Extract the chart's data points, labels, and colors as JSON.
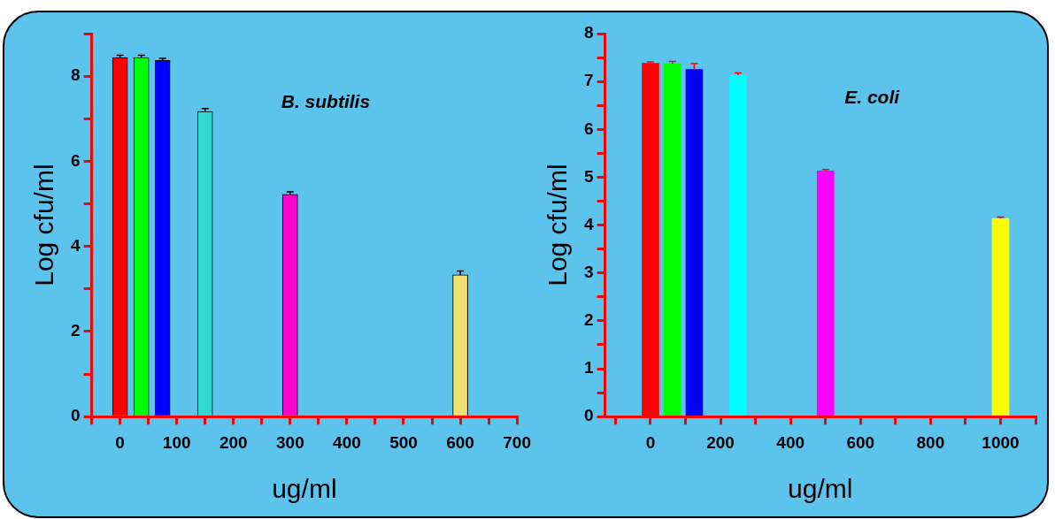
{
  "chart_data": [
    {
      "type": "bar",
      "title": "B. subtilis",
      "xlabel": "ug/ml",
      "ylabel": "Log cfu/ml",
      "x": [
        0,
        37.5,
        75,
        150,
        300,
        600
      ],
      "values": [
        8.44,
        8.44,
        8.37,
        7.17,
        5.22,
        3.33
      ],
      "errors": [
        0.05,
        0.05,
        0.05,
        0.07,
        0.06,
        0.09
      ],
      "colors": [
        "#ff0000",
        "#00ff00",
        "#0000ff",
        "#30d8d0",
        "#ff00cc",
        "#f0e070"
      ],
      "xlim": [
        -50,
        700
      ],
      "xticks": [
        {
          "value": -50,
          "label": null
        },
        0,
        {
          "value": 50,
          "label": null
        },
        100,
        {
          "value": 150,
          "label": null
        },
        200,
        {
          "value": 250,
          "label": null
        },
        300,
        {
          "value": 350,
          "label": null
        },
        400,
        {
          "value": 450,
          "label": null
        },
        500,
        {
          "value": 550,
          "label": null
        },
        600,
        {
          "value": 650,
          "label": null
        },
        700
      ],
      "ylim": [
        0,
        9
      ],
      "yticks": [
        0,
        {
          "value": 1,
          "label": null
        },
        2,
        {
          "value": 3,
          "label": null
        },
        4,
        {
          "value": 5,
          "label": null
        },
        6,
        {
          "value": 7,
          "label": null
        },
        8,
        {
          "value": 9,
          "label": null
        }
      ]
    },
    {
      "type": "bar",
      "title": "E. coli",
      "xlabel": "ug/ml",
      "ylabel": "Log cfu/ml",
      "x": [
        0,
        62.5,
        125,
        250,
        500,
        1000
      ],
      "values": [
        7.38,
        7.37,
        7.25,
        7.13,
        5.13,
        4.14
      ],
      "errors": [
        0.03,
        0.05,
        0.12,
        0.05,
        0.03,
        0.03
      ],
      "colors": [
        "#ff0000",
        "#00ff00",
        "#0000ff",
        "#00ffff",
        "#ff00ff",
        "#ffff00"
      ],
      "xlim": [
        -130,
        1100
      ],
      "xticks": [
        {
          "value": -100,
          "label": null
        },
        0,
        {
          "value": 100,
          "label": null
        },
        200,
        {
          "value": 300,
          "label": null
        },
        400,
        {
          "value": 500,
          "label": null
        },
        600,
        {
          "value": 700,
          "label": null
        },
        800,
        {
          "value": 900,
          "label": null
        },
        1000,
        {
          "value": 1100,
          "label": null
        }
      ],
      "ylim": [
        0,
        8
      ],
      "yticks": [
        0,
        {
          "value": 0.5,
          "label": null
        },
        1,
        {
          "value": 1.5,
          "label": null
        },
        2,
        {
          "value": 2.5,
          "label": null
        },
        3,
        {
          "value": 3.5,
          "label": null
        },
        4,
        {
          "value": 4.5,
          "label": null
        },
        5,
        {
          "value": 5.5,
          "label": null
        },
        6,
        {
          "value": 6.5,
          "label": null
        },
        7,
        {
          "value": 7.5,
          "label": null
        },
        8
      ]
    }
  ]
}
